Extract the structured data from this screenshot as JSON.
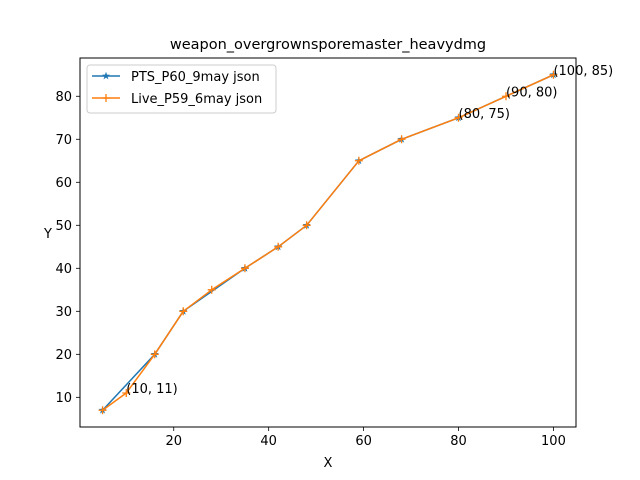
{
  "chart_data": {
    "type": "line",
    "title": "weapon_overgrownsporemaster_heavydmg",
    "xlabel": "X",
    "ylabel": "Y",
    "xlim": [
      0.25,
      104.75
    ],
    "ylim": [
      3.1,
      88.9
    ],
    "xticks": [
      20,
      40,
      60,
      80,
      100
    ],
    "yticks": [
      10,
      20,
      30,
      40,
      50,
      60,
      70,
      80
    ],
    "grid": false,
    "legend_position": "upper-left",
    "series": [
      {
        "name": "PTS_P60_9may json",
        "color": "#1f77b4",
        "marker": "star",
        "points": [
          [
            5,
            7
          ],
          [
            16,
            20
          ],
          [
            22,
            30
          ],
          [
            35,
            40
          ],
          [
            42,
            45
          ],
          [
            48,
            50
          ],
          [
            59,
            65
          ],
          [
            68,
            70
          ],
          [
            80,
            75
          ],
          [
            100,
            85
          ]
        ]
      },
      {
        "name": "Live_P59_6may json",
        "color": "#ff7f0e",
        "marker": "plus",
        "points": [
          [
            5,
            7
          ],
          [
            10,
            11
          ],
          [
            16,
            20
          ],
          [
            22,
            30
          ],
          [
            28,
            35
          ],
          [
            35,
            40
          ],
          [
            42,
            45
          ],
          [
            48,
            50
          ],
          [
            59,
            65
          ],
          [
            68,
            70
          ],
          [
            80,
            75
          ],
          [
            90,
            80
          ],
          [
            100,
            85
          ]
        ]
      }
    ],
    "annotations": [
      {
        "text": "(10, 11)",
        "x": 10,
        "y": 11
      },
      {
        "text": "(80, 75)",
        "x": 80,
        "y": 75
      },
      {
        "text": "(90, 80)",
        "x": 90,
        "y": 80
      },
      {
        "text": "(100, 85)",
        "x": 100,
        "y": 85
      }
    ]
  }
}
